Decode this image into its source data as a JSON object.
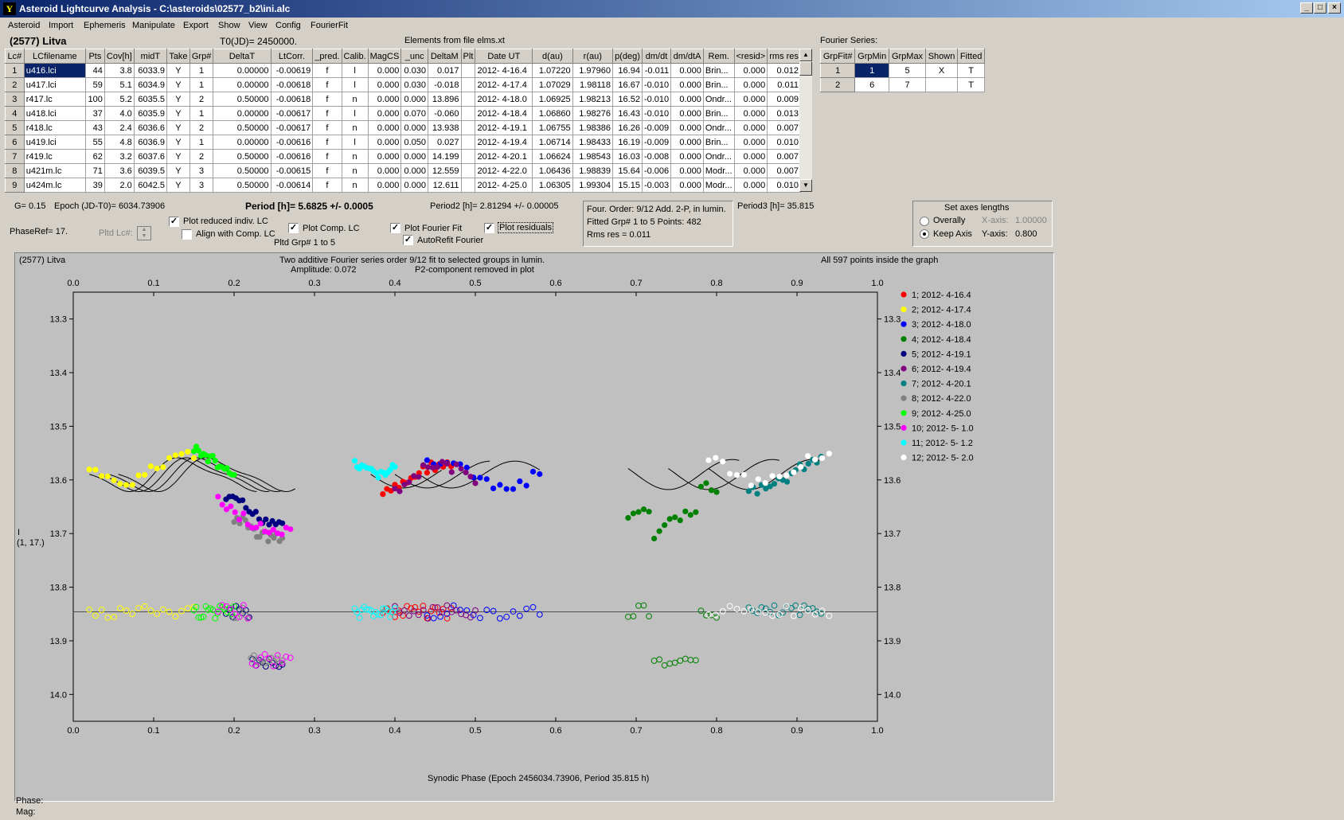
{
  "window": {
    "title": "Asteroid Lightcurve Analysis - C:\\asteroids\\02577_b2\\ini.alc",
    "app_icon": "Y",
    "buttons": {
      "minimize": "_",
      "maximize": "□",
      "close": "×"
    }
  },
  "menu": [
    "Asteroid",
    "Import",
    "Ephemeris",
    "Manipulate",
    "Export",
    "Show",
    "View",
    "Config",
    "FourierFit"
  ],
  "header": {
    "asteroid": "(2577) Litva",
    "t0": "T0(JD)= 2450000.",
    "elements": "Elements from file elms.xt",
    "fourier_label": "Fourier Series:"
  },
  "lc_table": {
    "columns": [
      "Lc#",
      "LCfilename",
      "Pts",
      "Cov[h]",
      "midT",
      "Take",
      "Grp#",
      "DeltaT",
      "LtCorr.",
      "_pred.",
      "Calib.",
      "MagCS",
      "_unc",
      "DeltaM",
      "Plt",
      "Date UT",
      "d(au)",
      "r(au)",
      "p(deg)",
      "dm/dt",
      "dm/dtA",
      "Rem.",
      "<resid>",
      "rms res"
    ],
    "rows": [
      [
        "1",
        "u416.lci",
        "44",
        "3.8",
        "6033.9",
        "Y",
        "1",
        "0.00000",
        "-0.00619",
        "f",
        "l",
        "0.000",
        "0.030",
        "0.017",
        "",
        "2012- 4-16.4",
        "1.07220",
        "1.97960",
        "16.94",
        "-0.011",
        "0.000",
        "Brin...",
        "0.000",
        "0.012"
      ],
      [
        "2",
        "u417.lci",
        "59",
        "5.1",
        "6034.9",
        "Y",
        "1",
        "0.00000",
        "-0.00618",
        "f",
        "l",
        "0.000",
        "0.030",
        "-0.018",
        "",
        "2012- 4-17.4",
        "1.07029",
        "1.98118",
        "16.67",
        "-0.010",
        "0.000",
        "Brin...",
        "0.000",
        "0.011"
      ],
      [
        "3",
        "r417.lc",
        "100",
        "5.2",
        "6035.5",
        "Y",
        "2",
        "0.50000",
        "-0.00618",
        "f",
        "n",
        "0.000",
        "0.000",
        "13.896",
        "",
        "2012- 4-18.0",
        "1.06925",
        "1.98213",
        "16.52",
        "-0.010",
        "0.000",
        "Ondr...",
        "0.000",
        "0.009"
      ],
      [
        "4",
        "u418.lci",
        "37",
        "4.0",
        "6035.9",
        "Y",
        "1",
        "0.00000",
        "-0.00617",
        "f",
        "l",
        "0.000",
        "0.070",
        "-0.060",
        "",
        "2012- 4-18.4",
        "1.06860",
        "1.98276",
        "16.43",
        "-0.010",
        "0.000",
        "Brin...",
        "0.000",
        "0.013"
      ],
      [
        "5",
        "r418.lc",
        "43",
        "2.4",
        "6036.6",
        "Y",
        "2",
        "0.50000",
        "-0.00617",
        "f",
        "n",
        "0.000",
        "0.000",
        "13.938",
        "",
        "2012- 4-19.1",
        "1.06755",
        "1.98386",
        "16.26",
        "-0.009",
        "0.000",
        "Ondr...",
        "0.000",
        "0.007"
      ],
      [
        "6",
        "u419.lci",
        "55",
        "4.8",
        "6036.9",
        "Y",
        "1",
        "0.00000",
        "-0.00616",
        "f",
        "l",
        "0.000",
        "0.050",
        "0.027",
        "",
        "2012- 4-19.4",
        "1.06714",
        "1.98433",
        "16.19",
        "-0.009",
        "0.000",
        "Brin...",
        "0.000",
        "0.010"
      ],
      [
        "7",
        "r419.lc",
        "62",
        "3.2",
        "6037.6",
        "Y",
        "2",
        "0.50000",
        "-0.00616",
        "f",
        "n",
        "0.000",
        "0.000",
        "14.199",
        "",
        "2012- 4-20.1",
        "1.06624",
        "1.98543",
        "16.03",
        "-0.008",
        "0.000",
        "Ondr...",
        "0.000",
        "0.007"
      ],
      [
        "8",
        "u421m.lc",
        "71",
        "3.6",
        "6039.5",
        "Y",
        "3",
        "0.50000",
        "-0.00615",
        "f",
        "n",
        "0.000",
        "0.000",
        "12.559",
        "",
        "2012- 4-22.0",
        "1.06436",
        "1.98839",
        "15.64",
        "-0.006",
        "0.000",
        "Modr...",
        "0.000",
        "0.007"
      ],
      [
        "9",
        "u424m.lc",
        "39",
        "2.0",
        "6042.5",
        "Y",
        "3",
        "0.50000",
        "-0.00614",
        "f",
        "n",
        "0.000",
        "0.000",
        "12.611",
        "",
        "2012- 4-25.0",
        "1.06305",
        "1.99304",
        "15.15",
        "-0.003",
        "0.000",
        "Modr...",
        "0.000",
        "0.010"
      ]
    ]
  },
  "fourier_table": {
    "columns": [
      "GrpFit#",
      "GrpMin",
      "GrpMax",
      "Shown",
      "Fitted"
    ],
    "rows": [
      [
        "1",
        "1",
        "5",
        "X",
        "T"
      ],
      [
        "2",
        "6",
        "7",
        "",
        "T"
      ]
    ]
  },
  "params": {
    "g": "G= 0.15",
    "epoch": "Epoch (JD-T0)= 6034.73906",
    "period": "Period [h]= 5.6825 +/- 0.0005",
    "period2": "Period2 [h]= 2.81294 +/- 0.00005",
    "period3": "Period3 [h]= 35.815",
    "phaseref": "PhaseRef= 17.",
    "pltd_lc": "Pltd Lc#:"
  },
  "checks": {
    "plot_reduced": "Plot reduced indiv. LC",
    "align_comp": "Align with Comp. LC",
    "plot_comp": "Plot Comp. LC",
    "pltd_grp": "Pltd Grp#  1   to   5",
    "plot_fourier": "Plot Fourier Fit",
    "autorefit": "AutoRefit Fourier",
    "plot_residuals": "Plot residuals"
  },
  "info_box": {
    "line1": "Four. Order:  9/12    Add. 2-P,  in lumin.",
    "line2": "Fitted Grp# 1 to 5     Points: 482",
    "line3": "Rms res      = 0.011"
  },
  "axes_box": {
    "title": "Set axes lengths",
    "overally": "Overally",
    "keep_axis": "Keep Axis",
    "x_axis_label": "X-axis:",
    "x_axis_value": "1.00000",
    "y_axis_label": "Y-axis:",
    "y_axis_value": "0.800"
  },
  "status": {
    "phase": "Phase:",
    "mag": "Mag:"
  },
  "chart_data": {
    "type": "scatter",
    "title_left": "(2577) Litva",
    "title": "Two additive Fourier series order 9/12 fit to selected groups in lumin.",
    "subtitle_left": "Amplitude: 0.072",
    "subtitle_right": "P2-component removed in plot",
    "note": "All 597 points inside the graph",
    "xlabel": "Synodic Phase (Epoch 2456034.73906, Period 35.815 h)",
    "ylabel": "I",
    "ylabel2": "(1, 17.)",
    "xlim": [
      0.0,
      1.0
    ],
    "ylim": [
      13.25,
      14.05
    ],
    "y_inverted": true,
    "x_ticks": [
      "0.0",
      "0.1",
      "0.2",
      "0.3",
      "0.4",
      "0.5",
      "0.6",
      "0.7",
      "0.8",
      "0.9",
      "1.0"
    ],
    "y_ticks": [
      "13.3",
      "13.4",
      "13.5",
      "13.6",
      "13.7",
      "13.8",
      "13.9",
      "14.0"
    ],
    "residual_line": 13.846,
    "series": [
      {
        "name": "1; 2012- 4-16.4",
        "color": "#ff0000",
        "range": [
          0.385,
          0.47
        ],
        "base": 13.6
      },
      {
        "name": "2; 2012- 4-17.4",
        "color": "#ffff00",
        "range": [
          0.02,
          0.15
        ],
        "base": 13.58
      },
      {
        "name": "3; 2012- 4-18.0",
        "color": "#0000ff",
        "range": [
          0.44,
          0.58
        ],
        "base": 13.59
      },
      {
        "name": "4; 2012- 4-18.4",
        "color": "#008000",
        "range": [
          0.69,
          0.8
        ],
        "base": 13.64
      },
      {
        "name": "5; 2012- 4-19.1",
        "color": "#000080",
        "range": [
          0.19,
          0.26
        ],
        "base": 13.62
      },
      {
        "name": "6; 2012- 4-19.4",
        "color": "#800080",
        "range": [
          0.4,
          0.5
        ],
        "base": 13.6
      },
      {
        "name": "7; 2012- 4-20.1",
        "color": "#008080",
        "range": [
          0.84,
          0.93
        ],
        "base": 13.59
      },
      {
        "name": "8; 2012- 4-22.0",
        "color": "#808080",
        "range": [
          0.2,
          0.26
        ],
        "base": 13.65
      },
      {
        "name": "9; 2012- 4-25.0",
        "color": "#00ff00",
        "range": [
          0.15,
          0.2
        ],
        "base": 13.57
      },
      {
        "name": "10; 2012- 5- 1.0",
        "color": "#ff00ff",
        "range": [
          0.18,
          0.27
        ],
        "base": 13.64
      },
      {
        "name": "11; 2012- 5- 1.2",
        "color": "#00ffff",
        "range": [
          0.35,
          0.4
        ],
        "base": 13.56
      },
      {
        "name": "12; 2012- 5- 2.0",
        "color": "#ffffff",
        "range": [
          0.79,
          0.94
        ],
        "base": 13.58
      }
    ]
  }
}
